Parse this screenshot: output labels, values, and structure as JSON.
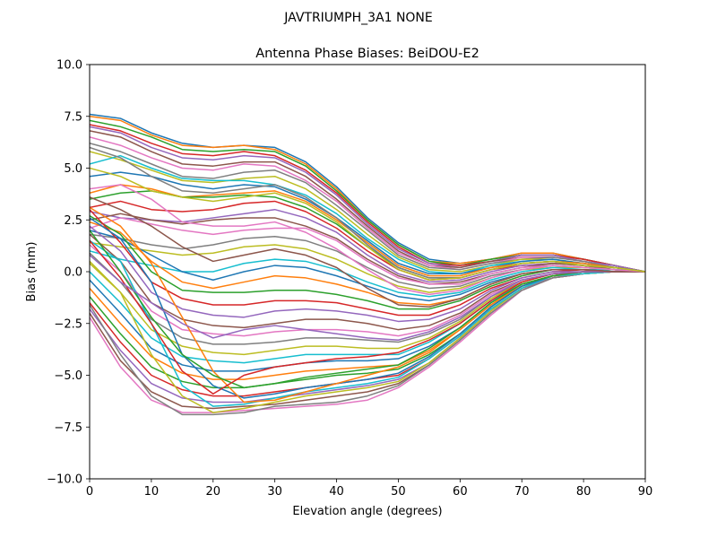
{
  "figure": {
    "suptitle": "JAVTRIUMPH_3A1  NONE"
  },
  "chart_data": {
    "type": "line",
    "title": "Antenna Phase Biases: BeiDOU-E2",
    "xlabel": "Elevation angle (degrees)",
    "ylabel": "Bias (mm)",
    "xlim": [
      0,
      90
    ],
    "ylim": [
      -10,
      10
    ],
    "x_ticks": [
      0,
      10,
      20,
      30,
      40,
      50,
      60,
      70,
      80,
      90
    ],
    "y_ticks": [
      -10.0,
      -7.5,
      -5.0,
      -2.5,
      0.0,
      2.5,
      5.0,
      7.5,
      10.0
    ],
    "y_tick_labels": [
      "−10.0",
      "−7.5",
      "−5.0",
      "−2.5",
      "0.0",
      "2.5",
      "5.0",
      "7.5",
      "10.0"
    ],
    "x_tick_labels": [
      "0",
      "10",
      "20",
      "30",
      "40",
      "50",
      "60",
      "70",
      "80",
      "90"
    ],
    "grid": false,
    "legend": "none",
    "palette": [
      "#1f77b4",
      "#ff7f0e",
      "#2ca02c",
      "#d62728",
      "#9467bd",
      "#8c564b",
      "#e377c2",
      "#7f7f7f",
      "#bcbd22",
      "#17becf"
    ],
    "x": [
      0,
      5,
      10,
      15,
      20,
      25,
      30,
      35,
      40,
      45,
      50,
      55,
      60,
      65,
      70,
      75,
      80,
      85,
      90
    ],
    "series": [
      {
        "values": [
          7.6,
          7.4,
          6.7,
          6.2,
          6.0,
          6.1,
          6.0,
          5.3,
          4.1,
          2.6,
          1.4,
          0.6,
          0.4,
          0.6,
          0.9,
          0.9,
          0.6,
          0.3,
          0.0
        ]
      },
      {
        "values": [
          7.5,
          7.3,
          6.6,
          6.1,
          6.0,
          6.1,
          5.9,
          5.2,
          4.0,
          2.5,
          1.3,
          0.5,
          0.4,
          0.6,
          0.9,
          0.9,
          0.6,
          0.3,
          0.0
        ]
      },
      {
        "values": [
          7.3,
          7.0,
          6.5,
          5.9,
          5.8,
          5.9,
          5.8,
          5.1,
          3.9,
          2.5,
          1.3,
          0.5,
          0.3,
          0.6,
          0.8,
          0.8,
          0.6,
          0.3,
          0.0
        ]
      },
      {
        "values": [
          7.1,
          6.8,
          6.2,
          5.7,
          5.6,
          5.8,
          5.6,
          4.9,
          3.8,
          2.4,
          1.2,
          0.4,
          0.3,
          0.5,
          0.8,
          0.8,
          0.6,
          0.3,
          0.0
        ]
      },
      {
        "values": [
          7.0,
          6.7,
          6.0,
          5.5,
          5.4,
          5.6,
          5.5,
          4.8,
          3.7,
          2.3,
          1.1,
          0.4,
          0.2,
          0.5,
          0.8,
          0.8,
          0.5,
          0.3,
          0.0
        ]
      },
      {
        "values": [
          6.8,
          6.5,
          5.8,
          5.2,
          5.1,
          5.3,
          5.3,
          4.6,
          3.5,
          2.2,
          1.0,
          0.3,
          0.2,
          0.5,
          0.7,
          0.7,
          0.5,
          0.2,
          0.0
        ]
      },
      {
        "values": [
          6.5,
          6.1,
          5.5,
          5.0,
          4.9,
          5.2,
          5.1,
          4.4,
          3.4,
          2.1,
          0.9,
          0.3,
          0.1,
          0.4,
          0.7,
          0.7,
          0.5,
          0.2,
          0.0
        ]
      },
      {
        "values": [
          6.2,
          5.8,
          5.2,
          4.6,
          4.5,
          4.8,
          4.9,
          4.3,
          3.2,
          2.0,
          0.8,
          0.2,
          0.1,
          0.4,
          0.6,
          0.7,
          0.5,
          0.2,
          0.0
        ]
      },
      {
        "values": [
          5.8,
          5.4,
          4.9,
          4.4,
          4.3,
          4.5,
          4.6,
          4.0,
          3.0,
          1.8,
          0.7,
          0.1,
          0.0,
          0.3,
          0.6,
          0.6,
          0.4,
          0.2,
          0.0
        ]
      },
      {
        "values": [
          5.2,
          5.6,
          5.0,
          4.5,
          4.4,
          4.4,
          4.2,
          3.7,
          2.8,
          1.6,
          0.6,
          0.0,
          -0.1,
          0.3,
          0.5,
          0.6,
          0.4,
          0.2,
          0.0
        ]
      },
      {
        "values": [
          4.6,
          4.8,
          4.6,
          4.2,
          4.0,
          4.2,
          4.1,
          3.5,
          2.6,
          1.5,
          0.4,
          -0.1,
          -0.1,
          0.2,
          0.5,
          0.6,
          0.4,
          0.2,
          0.0
        ]
      },
      {
        "values": [
          3.8,
          4.2,
          4.0,
          3.6,
          3.7,
          3.8,
          3.9,
          3.4,
          2.5,
          1.4,
          0.3,
          -0.2,
          -0.2,
          0.2,
          0.4,
          0.5,
          0.4,
          0.2,
          0.0
        ]
      },
      {
        "values": [
          3.5,
          3.8,
          3.9,
          3.6,
          3.6,
          3.7,
          3.6,
          3.1,
          2.3,
          1.2,
          0.2,
          -0.3,
          -0.3,
          0.1,
          0.4,
          0.5,
          0.3,
          0.2,
          0.0
        ]
      },
      {
        "values": [
          3.1,
          3.4,
          3.0,
          2.9,
          3.0,
          3.3,
          3.4,
          2.9,
          2.1,
          1.0,
          0.1,
          -0.4,
          -0.3,
          0.1,
          0.3,
          0.4,
          0.3,
          0.1,
          0.0
        ]
      },
      {
        "values": [
          2.9,
          2.6,
          2.5,
          2.4,
          2.6,
          2.8,
          3.0,
          2.6,
          1.9,
          0.8,
          -0.1,
          -0.5,
          -0.4,
          0.0,
          0.3,
          0.4,
          0.3,
          0.1,
          0.0
        ]
      },
      {
        "values": [
          2.5,
          2.8,
          2.5,
          2.3,
          2.5,
          2.6,
          2.6,
          2.2,
          1.6,
          0.6,
          -0.2,
          -0.6,
          -0.5,
          -0.1,
          0.2,
          0.4,
          0.3,
          0.1,
          0.0
        ]
      },
      {
        "values": [
          2.1,
          2.6,
          2.3,
          2.0,
          1.8,
          2.0,
          2.1,
          2.1,
          1.5,
          0.5,
          -0.3,
          -0.6,
          -0.6,
          -0.1,
          0.2,
          0.3,
          0.2,
          0.1,
          0.0
        ]
      },
      {
        "values": [
          1.8,
          1.6,
          1.3,
          1.1,
          1.3,
          1.6,
          1.7,
          1.5,
          1.0,
          0.2,
          -0.5,
          -0.8,
          -0.7,
          -0.2,
          0.1,
          0.3,
          0.2,
          0.1,
          0.0
        ]
      },
      {
        "values": [
          1.4,
          1.2,
          1.0,
          0.8,
          0.9,
          1.2,
          1.3,
          1.1,
          0.6,
          -0.1,
          -0.7,
          -1.0,
          -0.8,
          -0.3,
          0.1,
          0.2,
          0.2,
          0.1,
          0.0
        ]
      },
      {
        "values": [
          1.0,
          0.6,
          0.3,
          0.0,
          0.0,
          0.4,
          0.6,
          0.5,
          0.1,
          -0.5,
          -1.0,
          -1.2,
          -1.0,
          -0.4,
          0.0,
          0.2,
          0.1,
          0.1,
          0.0
        ]
      },
      {
        "values": [
          2.0,
          1.6,
          0.8,
          0.0,
          -0.4,
          0.0,
          0.3,
          0.2,
          -0.2,
          -0.7,
          -1.2,
          -1.4,
          -1.1,
          -0.5,
          -0.1,
          0.1,
          0.1,
          0.0,
          0.0
        ]
      },
      {
        "values": [
          2.4,
          1.9,
          0.5,
          -0.5,
          -0.8,
          -0.5,
          -0.2,
          -0.3,
          -0.6,
          -1.0,
          -1.5,
          -1.6,
          -1.3,
          -0.6,
          -0.1,
          0.1,
          0.1,
          0.0,
          0.0
        ]
      },
      {
        "values": [
          2.7,
          1.8,
          0.0,
          -0.9,
          -1.0,
          -1.0,
          -0.9,
          -0.9,
          -1.1,
          -1.4,
          -1.8,
          -1.8,
          -1.4,
          -0.7,
          -0.2,
          0.1,
          0.1,
          0.0,
          0.0
        ]
      },
      {
        "values": [
          3.0,
          1.4,
          -0.5,
          -1.3,
          -1.6,
          -1.6,
          -1.4,
          -1.4,
          -1.5,
          -1.8,
          -2.1,
          -2.1,
          -1.6,
          -0.8,
          -0.3,
          0.0,
          0.1,
          0.0,
          0.0
        ]
      },
      {
        "values": [
          2.2,
          1.0,
          -1.0,
          -1.8,
          -2.1,
          -2.2,
          -1.9,
          -1.8,
          -1.9,
          -2.1,
          -2.4,
          -2.3,
          -1.8,
          -0.9,
          -0.3,
          0.0,
          0.0,
          0.0,
          0.0
        ]
      },
      {
        "values": [
          1.8,
          0.5,
          -1.5,
          -2.3,
          -2.6,
          -2.7,
          -2.5,
          -2.3,
          -2.3,
          -2.5,
          -2.8,
          -2.6,
          -2.0,
          -1.0,
          -0.4,
          -0.1,
          0.0,
          0.0,
          0.0
        ]
      },
      {
        "values": [
          1.3,
          0.0,
          -1.9,
          -2.8,
          -3.0,
          -3.1,
          -2.9,
          -2.8,
          -2.8,
          -2.9,
          -3.1,
          -2.8,
          -2.1,
          -1.1,
          -0.4,
          -0.1,
          0.0,
          0.0,
          0.0
        ]
      },
      {
        "values": [
          0.9,
          -0.5,
          -2.3,
          -3.2,
          -3.5,
          -3.5,
          -3.4,
          -3.2,
          -3.2,
          -3.3,
          -3.4,
          -3.0,
          -2.3,
          -1.2,
          -0.5,
          -0.1,
          0.0,
          0.0,
          0.0
        ]
      },
      {
        "values": [
          0.4,
          -1.0,
          -2.8,
          -3.6,
          -3.9,
          -4.0,
          -3.8,
          -3.6,
          -3.6,
          -3.7,
          -3.7,
          -3.2,
          -2.4,
          -1.3,
          -0.5,
          -0.1,
          0.0,
          0.0,
          0.0
        ]
      },
      {
        "values": [
          0.0,
          -1.5,
          -3.2,
          -4.1,
          -4.3,
          -4.4,
          -4.2,
          -4.0,
          -4.0,
          -4.0,
          -4.0,
          -3.4,
          -2.5,
          -1.4,
          -0.6,
          -0.2,
          0.0,
          0.0,
          0.0
        ]
      },
      {
        "values": [
          -0.4,
          -2.0,
          -3.7,
          -4.5,
          -4.8,
          -4.8,
          -4.6,
          -4.4,
          -4.3,
          -4.3,
          -4.2,
          -3.6,
          -2.7,
          -1.5,
          -0.6,
          -0.2,
          0.0,
          0.0,
          0.0
        ]
      },
      {
        "values": [
          -0.8,
          -2.5,
          -4.1,
          -4.9,
          -5.2,
          -5.2,
          -5.0,
          -4.8,
          -4.7,
          -4.6,
          -4.5,
          -3.8,
          -2.8,
          -1.6,
          -0.7,
          -0.2,
          0.0,
          0.0,
          0.0
        ]
      },
      {
        "values": [
          -1.2,
          -3.0,
          -4.6,
          -5.3,
          -5.6,
          -5.6,
          -5.4,
          -5.2,
          -5.0,
          -4.9,
          -4.7,
          -4.0,
          -3.0,
          -1.7,
          -0.7,
          -0.2,
          -0.1,
          0.0,
          0.0
        ]
      },
      {
        "values": [
          -1.5,
          -3.4,
          -5.0,
          -5.7,
          -6.0,
          -6.0,
          -5.8,
          -5.6,
          -5.4,
          -5.2,
          -5.0,
          -4.2,
          -3.1,
          -1.8,
          -0.8,
          -0.3,
          -0.1,
          0.0,
          0.0
        ]
      },
      {
        "values": [
          -1.8,
          -3.8,
          -5.4,
          -6.1,
          -6.3,
          -6.3,
          -6.1,
          -5.9,
          -5.7,
          -5.5,
          -5.2,
          -4.4,
          -3.2,
          -1.9,
          -0.8,
          -0.3,
          -0.1,
          0.0,
          0.0
        ]
      },
      {
        "values": [
          -2.0,
          -4.3,
          -5.8,
          -6.5,
          -6.6,
          -6.5,
          -6.4,
          -6.2,
          -6.0,
          -5.8,
          -5.4,
          -4.5,
          -3.3,
          -2.0,
          -0.9,
          -0.3,
          -0.1,
          0.0,
          0.0
        ]
      },
      {
        "values": [
          -2.2,
          -4.6,
          -6.2,
          -6.8,
          -6.8,
          -6.7,
          -6.6,
          -6.5,
          -6.4,
          -6.2,
          -5.6,
          -4.6,
          -3.4,
          -2.1,
          -0.9,
          -0.3,
          -0.1,
          0.0,
          0.0
        ]
      },
      {
        "values": [
          -1.6,
          -4.0,
          -6.0,
          -6.9,
          -6.9,
          -6.8,
          -6.5,
          -6.4,
          -6.3,
          -6.0,
          -5.5,
          -4.5,
          -3.3,
          -2.0,
          -0.9,
          -0.3,
          -0.1,
          0.0,
          0.0
        ]
      },
      {
        "values": [
          0.5,
          -1.0,
          -4.0,
          -6.0,
          -6.8,
          -6.6,
          -6.3,
          -6.0,
          -5.8,
          -5.6,
          -5.3,
          -4.4,
          -3.2,
          -1.9,
          -0.8,
          -0.2,
          -0.1,
          0.0,
          0.0
        ]
      },
      {
        "values": [
          1.5,
          0.5,
          -2.5,
          -5.5,
          -6.5,
          -6.4,
          -6.1,
          -5.8,
          -5.6,
          -5.4,
          -5.1,
          -4.2,
          -3.1,
          -1.8,
          -0.8,
          -0.2,
          -0.1,
          0.0,
          0.0
        ]
      },
      {
        "values": [
          2.6,
          1.6,
          -0.5,
          -4.0,
          -5.5,
          -6.1,
          -5.9,
          -5.6,
          -5.4,
          -5.2,
          -4.9,
          -4.1,
          -3.0,
          -1.7,
          -0.7,
          -0.2,
          0.0,
          0.0,
          0.0
        ]
      },
      {
        "values": [
          3.1,
          2.2,
          0.4,
          -2.2,
          -4.8,
          -6.3,
          -6.2,
          -5.8,
          -5.4,
          -5.0,
          -4.6,
          -3.9,
          -2.8,
          -1.6,
          -0.6,
          -0.2,
          0.0,
          0.0,
          0.0
        ]
      },
      {
        "values": [
          2.0,
          0.0,
          -2.2,
          -4.0,
          -5.0,
          -5.6,
          -5.4,
          -5.1,
          -4.9,
          -4.7,
          -4.5,
          -3.7,
          -2.7,
          -1.5,
          -0.6,
          -0.2,
          0.0,
          0.0,
          0.0
        ]
      },
      {
        "values": [
          1.5,
          -0.3,
          -2.5,
          -4.8,
          -5.9,
          -5.0,
          -4.6,
          -4.4,
          -4.2,
          -4.1,
          -3.9,
          -3.3,
          -2.5,
          -1.4,
          -0.5,
          -0.1,
          0.0,
          0.0,
          0.0
        ]
      },
      {
        "values": [
          0.8,
          -0.5,
          -1.5,
          -2.5,
          -3.2,
          -2.8,
          -2.6,
          -2.8,
          -3.0,
          -3.2,
          -3.3,
          -2.9,
          -2.2,
          -1.2,
          -0.4,
          -0.1,
          0.0,
          0.0,
          0.0
        ]
      },
      {
        "values": [
          3.6,
          3.0,
          2.2,
          1.2,
          0.5,
          0.8,
          1.1,
          0.8,
          0.2,
          -0.8,
          -1.6,
          -1.7,
          -1.3,
          -0.6,
          -0.1,
          0.1,
          0.1,
          0.0,
          0.0
        ]
      },
      {
        "values": [
          4.0,
          4.2,
          3.5,
          2.4,
          2.2,
          2.2,
          2.4,
          1.9,
          1.1,
          0.1,
          -0.8,
          -1.1,
          -0.9,
          -0.3,
          0.1,
          0.3,
          0.2,
          0.1,
          0.0
        ]
      },
      {
        "values": [
          6.0,
          5.5,
          4.6,
          3.9,
          3.8,
          4.0,
          4.2,
          3.6,
          2.6,
          1.3,
          0.2,
          -0.3,
          -0.3,
          0.1,
          0.4,
          0.5,
          0.3,
          0.2,
          0.0
        ]
      },
      {
        "values": [
          5.0,
          4.6,
          3.9,
          3.6,
          3.4,
          3.6,
          3.8,
          3.3,
          2.4,
          1.2,
          0.1,
          -0.4,
          -0.3,
          0.1,
          0.4,
          0.5,
          0.3,
          0.2,
          0.0
        ]
      }
    ]
  }
}
